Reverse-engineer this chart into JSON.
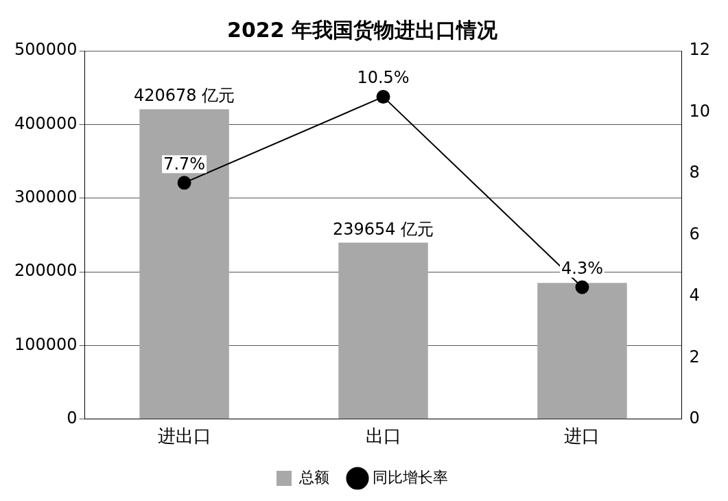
{
  "chart_data": {
    "type": "bar",
    "title": "2022 年我国货物进出口情况",
    "categories": [
      "进出口",
      "出口",
      "进口"
    ],
    "series": [
      {
        "name": "总额",
        "color": "#a8a8a8",
        "values": [
          420678,
          239654,
          185000
        ],
        "value_labels": [
          "420678 亿元",
          "239654 亿元",
          null
        ]
      },
      {
        "name": "同比增长率",
        "type": "line",
        "axis": "y2",
        "color": "#000000",
        "values": [
          7.7,
          10.5,
          4.3
        ],
        "value_labels": [
          "7.7%",
          "10.5%",
          "4.3%"
        ],
        "marker": "circle"
      }
    ],
    "ylim": [
      0,
      500000
    ],
    "yticks": [
      0,
      100000,
      200000,
      300000,
      400000,
      500000
    ],
    "y2lim": [
      0,
      12
    ],
    "y2ticks": [
      0,
      2,
      4,
      6,
      8,
      10,
      12
    ],
    "grid": "y",
    "legend": "bottom"
  }
}
